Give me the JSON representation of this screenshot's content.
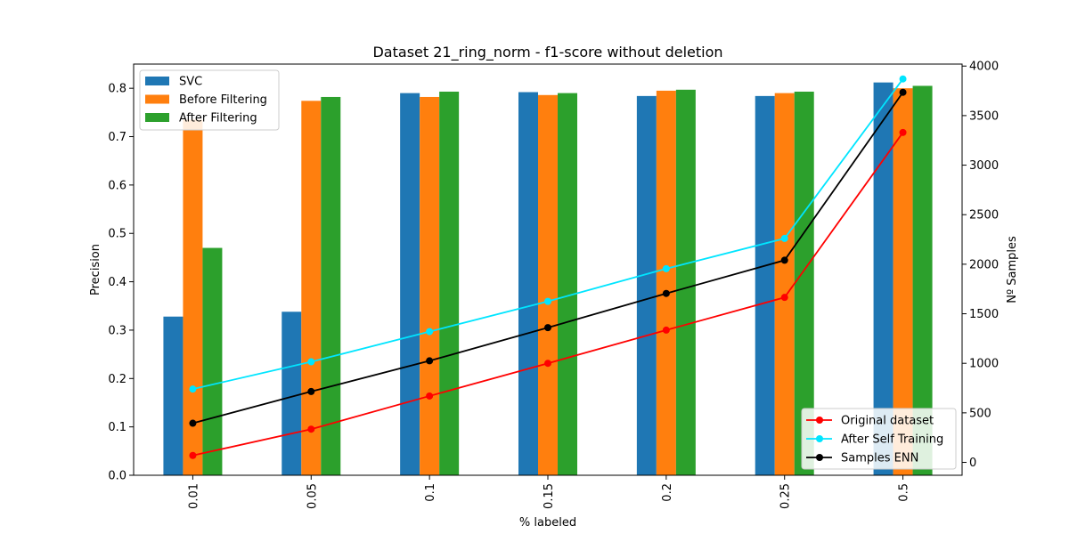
{
  "chart_data": {
    "type": "bar",
    "title": "Dataset 21_ring_norm - f1-score without deletion",
    "xlabel": "% labeled",
    "ylabel": "Precision",
    "y2label": "Nº Samples",
    "categories": [
      "0.01",
      "0.05",
      "0.1",
      "0.15",
      "0.2",
      "0.25",
      "0.5"
    ],
    "ylim": [
      0,
      0.85
    ],
    "y2lim": [
      -130,
      4020
    ],
    "yticks": [
      "0.0",
      "0.1",
      "0.2",
      "0.3",
      "0.4",
      "0.5",
      "0.6",
      "0.7",
      "0.8"
    ],
    "y2ticks": [
      "0",
      "500",
      "1000",
      "1500",
      "2000",
      "2500",
      "3000",
      "3500",
      "4000"
    ],
    "grid": false,
    "bar_legend_placement": "top-left",
    "line_legend_placement": "bottom-right",
    "series": [
      {
        "name": "SVC",
        "color": "#1f77b4",
        "values": [
          0.328,
          0.338,
          0.79,
          0.792,
          0.784,
          0.784,
          0.812
        ]
      },
      {
        "name": "Before Filtering",
        "color": "#ff7f0e",
        "values": [
          0.735,
          0.774,
          0.782,
          0.786,
          0.795,
          0.79,
          0.8
        ]
      },
      {
        "name": "After Filtering",
        "color": "#2ca02c",
        "values": [
          0.47,
          0.782,
          0.793,
          0.79,
          0.797,
          0.793,
          0.805
        ]
      }
    ],
    "line_series": [
      {
        "name": "Original dataset",
        "color": "#ff0000",
        "values": [
          70,
          335,
          670,
          1000,
          1335,
          1665,
          3330
        ]
      },
      {
        "name": "After Self Training",
        "color": "#00e5ff",
        "values": [
          740,
          1015,
          1320,
          1625,
          1955,
          2260,
          3870
        ]
      },
      {
        "name": "Samples ENN",
        "color": "#000000",
        "values": [
          395,
          715,
          1025,
          1360,
          1705,
          2040,
          3735
        ]
      }
    ]
  }
}
